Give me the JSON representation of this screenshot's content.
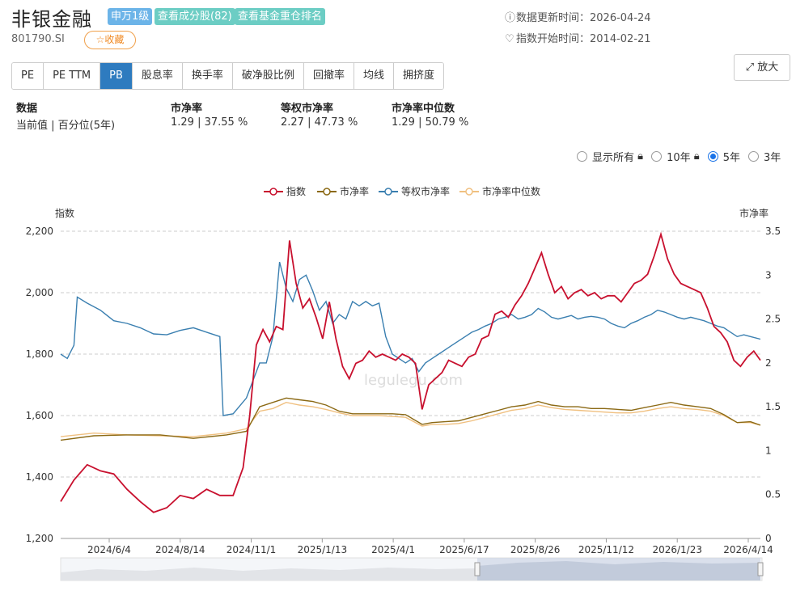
{
  "header": {
    "title": "非银金融",
    "tag_level": "申万1级",
    "tag_components": "查看成分股(82)",
    "tag_funds": "查看基金重仓排名",
    "code": "801790.SI",
    "favorite": "☆收藏",
    "update_label": "数据更新时间：2026-04-24",
    "start_label": "指数开始时间：2014-02-21"
  },
  "tabs": [
    "PE",
    "PE TTM",
    "PB",
    "股息率",
    "换手率",
    "破净股比例",
    "回撤率",
    "均线",
    "拥挤度"
  ],
  "active_tab": "PB",
  "zoom_label": "放大",
  "stats": {
    "col1_h": "数据",
    "col1_v": "当前值 | 百分位(5年)",
    "col2_h": "市净率",
    "col2_v": "1.29 | 37.55 %",
    "col3_h": "等权市净率",
    "col3_v": "2.27 | 47.73 %",
    "col4_h": "市净率中位数",
    "col4_v": "1.29 | 50.79 %"
  },
  "range_options": [
    "显示所有",
    "10年",
    "5年",
    "3年"
  ],
  "range_selected": "5年",
  "watermark": "legulegu.com",
  "colors": {
    "index": "#c8102e",
    "pb": "#8b6914",
    "equal_pb": "#3a7fb0",
    "median_pb": "#f0c080",
    "active_tab": "#2e7bbf"
  },
  "chart_data": {
    "type": "line",
    "ylabel_left": "指数",
    "ylabel_right": "市净率",
    "ylim_left": [
      1200,
      2200
    ],
    "ylim_right": [
      0,
      3.5
    ],
    "yticks_left": [
      "1,200",
      "1,400",
      "1,600",
      "1,800",
      "2,000",
      "2,200"
    ],
    "yticks_right": [
      "0",
      "0.5",
      "1",
      "1.5",
      "2",
      "2.5",
      "3",
      "3.5"
    ],
    "xticks": [
      "2024/6/4",
      "2024/8/14",
      "2024/11/1",
      "2025/1/13",
      "2025/4/1",
      "2025/6/17",
      "2025/8/26",
      "2025/11/12",
      "2026/1/23",
      "2026/4/14"
    ],
    "legend": [
      "指数",
      "市净率",
      "等权市净率",
      "市净率中位数"
    ],
    "grid": "horizontal dashed",
    "legend_position": "top-center",
    "series": [
      {
        "name": "指数",
        "axis": "left",
        "points": [
          [
            0,
            1320
          ],
          [
            0.02,
            1390
          ],
          [
            0.04,
            1440
          ],
          [
            0.06,
            1420
          ],
          [
            0.08,
            1410
          ],
          [
            0.1,
            1360
          ],
          [
            0.12,
            1320
          ],
          [
            0.14,
            1285
          ],
          [
            0.16,
            1300
          ],
          [
            0.18,
            1340
          ],
          [
            0.2,
            1330
          ],
          [
            0.22,
            1360
          ],
          [
            0.24,
            1340
          ],
          [
            0.26,
            1340
          ],
          [
            0.275,
            1430
          ],
          [
            0.285,
            1600
          ],
          [
            0.295,
            1830
          ],
          [
            0.305,
            1880
          ],
          [
            0.315,
            1840
          ],
          [
            0.325,
            1890
          ],
          [
            0.335,
            1880
          ],
          [
            0.345,
            2170
          ],
          [
            0.355,
            2030
          ],
          [
            0.365,
            1950
          ],
          [
            0.375,
            1980
          ],
          [
            0.385,
            1920
          ],
          [
            0.395,
            1850
          ],
          [
            0.405,
            1970
          ],
          [
            0.415,
            1850
          ],
          [
            0.425,
            1760
          ],
          [
            0.435,
            1720
          ],
          [
            0.445,
            1770
          ],
          [
            0.455,
            1780
          ],
          [
            0.465,
            1810
          ],
          [
            0.475,
            1790
          ],
          [
            0.485,
            1800
          ],
          [
            0.495,
            1790
          ],
          [
            0.505,
            1780
          ],
          [
            0.515,
            1800
          ],
          [
            0.525,
            1790
          ],
          [
            0.535,
            1770
          ],
          [
            0.545,
            1620
          ],
          [
            0.555,
            1700
          ],
          [
            0.565,
            1720
          ],
          [
            0.575,
            1740
          ],
          [
            0.585,
            1780
          ],
          [
            0.595,
            1770
          ],
          [
            0.605,
            1760
          ],
          [
            0.615,
            1790
          ],
          [
            0.625,
            1800
          ],
          [
            0.635,
            1850
          ],
          [
            0.645,
            1860
          ],
          [
            0.655,
            1930
          ],
          [
            0.665,
            1940
          ],
          [
            0.675,
            1920
          ],
          [
            0.685,
            1960
          ],
          [
            0.695,
            1990
          ],
          [
            0.705,
            2030
          ],
          [
            0.715,
            2080
          ],
          [
            0.725,
            2130
          ],
          [
            0.735,
            2060
          ],
          [
            0.745,
            2000
          ],
          [
            0.755,
            2020
          ],
          [
            0.765,
            1980
          ],
          [
            0.775,
            2000
          ],
          [
            0.785,
            2010
          ],
          [
            0.795,
            1990
          ],
          [
            0.805,
            2000
          ],
          [
            0.815,
            1980
          ],
          [
            0.825,
            1990
          ],
          [
            0.835,
            1990
          ],
          [
            0.845,
            1970
          ],
          [
            0.855,
            2000
          ],
          [
            0.865,
            2030
          ],
          [
            0.875,
            2040
          ],
          [
            0.885,
            2060
          ],
          [
            0.895,
            2120
          ],
          [
            0.905,
            2190
          ],
          [
            0.915,
            2110
          ],
          [
            0.925,
            2060
          ],
          [
            0.935,
            2030
          ],
          [
            0.945,
            2020
          ],
          [
            0.955,
            2010
          ],
          [
            0.965,
            2000
          ],
          [
            0.975,
            1950
          ],
          [
            0.985,
            1890
          ],
          [
            0.995,
            1870
          ],
          [
            1.005,
            1840
          ],
          [
            1.015,
            1780
          ],
          [
            1.025,
            1760
          ],
          [
            1.035,
            1790
          ],
          [
            1.045,
            1810
          ],
          [
            1.055,
            1780
          ]
        ]
      },
      {
        "name": "市净率",
        "axis": "right",
        "points": [
          [
            0,
            1.12
          ],
          [
            0.05,
            1.17
          ],
          [
            0.1,
            1.18
          ],
          [
            0.15,
            1.18
          ],
          [
            0.2,
            1.14
          ],
          [
            0.25,
            1.18
          ],
          [
            0.28,
            1.22
          ],
          [
            0.3,
            1.5
          ],
          [
            0.32,
            1.55
          ],
          [
            0.34,
            1.6
          ],
          [
            0.36,
            1.58
          ],
          [
            0.38,
            1.56
          ],
          [
            0.4,
            1.52
          ],
          [
            0.42,
            1.45
          ],
          [
            0.44,
            1.42
          ],
          [
            0.46,
            1.42
          ],
          [
            0.48,
            1.42
          ],
          [
            0.5,
            1.42
          ],
          [
            0.52,
            1.41
          ],
          [
            0.545,
            1.3
          ],
          [
            0.56,
            1.32
          ],
          [
            0.58,
            1.33
          ],
          [
            0.6,
            1.34
          ],
          [
            0.62,
            1.38
          ],
          [
            0.64,
            1.42
          ],
          [
            0.66,
            1.46
          ],
          [
            0.68,
            1.5
          ],
          [
            0.7,
            1.52
          ],
          [
            0.72,
            1.56
          ],
          [
            0.74,
            1.52
          ],
          [
            0.76,
            1.5
          ],
          [
            0.78,
            1.5
          ],
          [
            0.8,
            1.48
          ],
          [
            0.82,
            1.48
          ],
          [
            0.84,
            1.47
          ],
          [
            0.86,
            1.46
          ],
          [
            0.88,
            1.49
          ],
          [
            0.9,
            1.52
          ],
          [
            0.92,
            1.55
          ],
          [
            0.94,
            1.52
          ],
          [
            0.96,
            1.5
          ],
          [
            0.98,
            1.48
          ],
          [
            1.0,
            1.41
          ],
          [
            1.02,
            1.32
          ],
          [
            1.04,
            1.33
          ],
          [
            1.055,
            1.29
          ]
        ]
      },
      {
        "name": "等权市净率",
        "axis": "right",
        "points": [
          [
            0,
            2.1
          ],
          [
            0.01,
            2.05
          ],
          [
            0.02,
            2.2
          ],
          [
            0.025,
            2.75
          ],
          [
            0.04,
            2.68
          ],
          [
            0.06,
            2.6
          ],
          [
            0.08,
            2.48
          ],
          [
            0.1,
            2.45
          ],
          [
            0.12,
            2.4
          ],
          [
            0.14,
            2.33
          ],
          [
            0.16,
            2.32
          ],
          [
            0.18,
            2.37
          ],
          [
            0.2,
            2.4
          ],
          [
            0.22,
            2.35
          ],
          [
            0.24,
            2.3
          ],
          [
            0.245,
            1.4
          ],
          [
            0.26,
            1.42
          ],
          [
            0.28,
            1.6
          ],
          [
            0.3,
            2.0
          ],
          [
            0.31,
            2.0
          ],
          [
            0.32,
            2.3
          ],
          [
            0.33,
            3.15
          ],
          [
            0.34,
            2.85
          ],
          [
            0.35,
            2.7
          ],
          [
            0.36,
            2.95
          ],
          [
            0.37,
            3.0
          ],
          [
            0.38,
            2.82
          ],
          [
            0.39,
            2.6
          ],
          [
            0.4,
            2.7
          ],
          [
            0.41,
            2.45
          ],
          [
            0.42,
            2.55
          ],
          [
            0.43,
            2.5
          ],
          [
            0.44,
            2.7
          ],
          [
            0.45,
            2.65
          ],
          [
            0.46,
            2.7
          ],
          [
            0.47,
            2.65
          ],
          [
            0.48,
            2.68
          ],
          [
            0.49,
            2.3
          ],
          [
            0.5,
            2.1
          ],
          [
            0.51,
            2.05
          ],
          [
            0.52,
            2.0
          ],
          [
            0.53,
            2.05
          ],
          [
            0.54,
            1.9
          ],
          [
            0.55,
            2.0
          ],
          [
            0.56,
            2.05
          ],
          [
            0.57,
            2.1
          ],
          [
            0.58,
            2.15
          ],
          [
            0.59,
            2.2
          ],
          [
            0.6,
            2.25
          ],
          [
            0.61,
            2.3
          ],
          [
            0.62,
            2.35
          ],
          [
            0.63,
            2.38
          ],
          [
            0.64,
            2.42
          ],
          [
            0.65,
            2.45
          ],
          [
            0.66,
            2.5
          ],
          [
            0.67,
            2.52
          ],
          [
            0.68,
            2.55
          ],
          [
            0.69,
            2.5
          ],
          [
            0.7,
            2.52
          ],
          [
            0.71,
            2.55
          ],
          [
            0.72,
            2.62
          ],
          [
            0.73,
            2.58
          ],
          [
            0.74,
            2.52
          ],
          [
            0.75,
            2.5
          ],
          [
            0.76,
            2.52
          ],
          [
            0.77,
            2.54
          ],
          [
            0.78,
            2.5
          ],
          [
            0.79,
            2.52
          ],
          [
            0.8,
            2.53
          ],
          [
            0.81,
            2.52
          ],
          [
            0.82,
            2.5
          ],
          [
            0.83,
            2.45
          ],
          [
            0.84,
            2.42
          ],
          [
            0.85,
            2.4
          ],
          [
            0.86,
            2.45
          ],
          [
            0.87,
            2.48
          ],
          [
            0.88,
            2.52
          ],
          [
            0.89,
            2.55
          ],
          [
            0.9,
            2.6
          ],
          [
            0.91,
            2.58
          ],
          [
            0.92,
            2.55
          ],
          [
            0.93,
            2.52
          ],
          [
            0.94,
            2.5
          ],
          [
            0.95,
            2.52
          ],
          [
            0.96,
            2.5
          ],
          [
            0.97,
            2.48
          ],
          [
            0.98,
            2.45
          ],
          [
            0.99,
            2.42
          ],
          [
            1.0,
            2.4
          ],
          [
            1.01,
            2.35
          ],
          [
            1.02,
            2.3
          ],
          [
            1.03,
            2.32
          ],
          [
            1.04,
            2.3
          ],
          [
            1.055,
            2.27
          ]
        ]
      },
      {
        "name": "市净率中位数",
        "axis": "right",
        "points": [
          [
            0,
            1.16
          ],
          [
            0.05,
            1.2
          ],
          [
            0.1,
            1.18
          ],
          [
            0.15,
            1.17
          ],
          [
            0.2,
            1.16
          ],
          [
            0.25,
            1.2
          ],
          [
            0.28,
            1.25
          ],
          [
            0.3,
            1.45
          ],
          [
            0.32,
            1.48
          ],
          [
            0.34,
            1.55
          ],
          [
            0.36,
            1.52
          ],
          [
            0.38,
            1.5
          ],
          [
            0.4,
            1.47
          ],
          [
            0.42,
            1.43
          ],
          [
            0.44,
            1.4
          ],
          [
            0.46,
            1.4
          ],
          [
            0.48,
            1.4
          ],
          [
            0.5,
            1.39
          ],
          [
            0.52,
            1.38
          ],
          [
            0.545,
            1.28
          ],
          [
            0.56,
            1.3
          ],
          [
            0.58,
            1.3
          ],
          [
            0.6,
            1.31
          ],
          [
            0.62,
            1.34
          ],
          [
            0.64,
            1.38
          ],
          [
            0.66,
            1.42
          ],
          [
            0.68,
            1.46
          ],
          [
            0.7,
            1.48
          ],
          [
            0.72,
            1.52
          ],
          [
            0.74,
            1.49
          ],
          [
            0.76,
            1.47
          ],
          [
            0.78,
            1.46
          ],
          [
            0.8,
            1.45
          ],
          [
            0.82,
            1.44
          ],
          [
            0.84,
            1.43
          ],
          [
            0.86,
            1.43
          ],
          [
            0.88,
            1.45
          ],
          [
            0.9,
            1.48
          ],
          [
            0.92,
            1.5
          ],
          [
            0.94,
            1.48
          ],
          [
            0.96,
            1.47
          ],
          [
            0.98,
            1.45
          ],
          [
            1.0,
            1.4
          ],
          [
            1.02,
            1.32
          ],
          [
            1.04,
            1.32
          ],
          [
            1.055,
            1.29
          ]
        ]
      }
    ]
  }
}
